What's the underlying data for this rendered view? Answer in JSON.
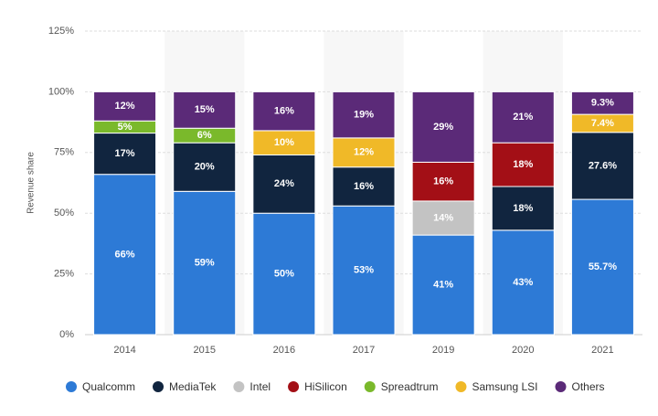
{
  "chart_data": {
    "type": "stacked-bar",
    "y_label": "Revenue share",
    "categories": [
      "2014",
      "2015",
      "2016",
      "2017",
      "2019",
      "2020",
      "2021"
    ],
    "series": [
      {
        "name": "Qualcomm",
        "color": "#2d7ad6",
        "values": [
          66,
          59,
          50,
          53,
          41,
          43,
          55.7
        ],
        "value_labels": [
          "66%",
          "59%",
          "50%",
          "53%",
          "41%",
          "43%",
          "55.7%"
        ]
      },
      {
        "name": "MediaTek",
        "color": "#11253f",
        "values": [
          17,
          20,
          24,
          16,
          null,
          18,
          27.6
        ],
        "value_labels": [
          "17%",
          "20%",
          "24%",
          "16%",
          null,
          "18%",
          "27.6%"
        ]
      },
      {
        "name": "Intel",
        "color": "#c3c3c3",
        "values": [
          null,
          null,
          null,
          null,
          14,
          null,
          null
        ],
        "value_labels": [
          null,
          null,
          null,
          null,
          "14%",
          null,
          null
        ]
      },
      {
        "name": "HiSilicon",
        "color": "#a30f16",
        "values": [
          null,
          null,
          null,
          null,
          16,
          18,
          null
        ],
        "value_labels": [
          null,
          null,
          null,
          null,
          "16%",
          "18%",
          null
        ]
      },
      {
        "name": "Spreadtrum",
        "color": "#7ab92b",
        "values": [
          5,
          6,
          null,
          null,
          null,
          null,
          null
        ],
        "value_labels": [
          "5%",
          "6%",
          null,
          null,
          null,
          null,
          null
        ]
      },
      {
        "name": "Samsung LSI",
        "color": "#f0b928",
        "values": [
          null,
          null,
          10,
          12,
          null,
          null,
          7.4
        ],
        "value_labels": [
          null,
          null,
          "10%",
          "12%",
          null,
          null,
          "7.4%"
        ]
      },
      {
        "name": "Others",
        "color": "#5b2a78",
        "values": [
          12,
          15,
          16,
          19,
          29,
          21,
          9.3
        ],
        "value_labels": [
          "12%",
          "15%",
          "16%",
          "19%",
          "29%",
          "21%",
          "9.3%"
        ]
      }
    ],
    "ylim": [
      0,
      125
    ],
    "yticks": [
      {
        "value": 0,
        "label": "0%"
      },
      {
        "value": 25,
        "label": "25%"
      },
      {
        "value": 50,
        "label": "50%"
      },
      {
        "value": 75,
        "label": "75%"
      },
      {
        "value": 100,
        "label": "100%"
      },
      {
        "value": 125,
        "label": "125%"
      }
    ],
    "grid": true
  }
}
